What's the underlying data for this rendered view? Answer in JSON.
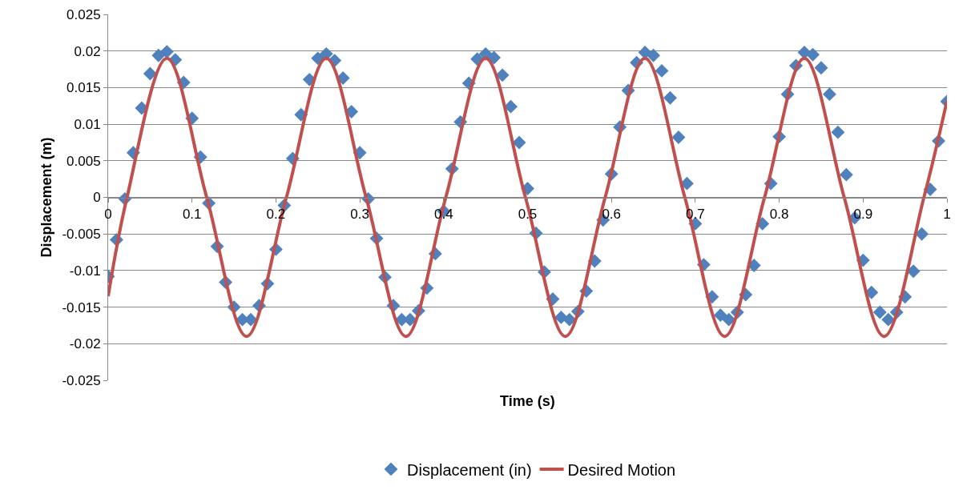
{
  "chart_data": {
    "type": "scatter",
    "xlabel": "Time (s)",
    "ylabel": "Displacement (m)",
    "xlim": [
      0,
      1
    ],
    "xticks": [
      0,
      0.1,
      0.2,
      0.3,
      0.4,
      0.5,
      0.6,
      0.7,
      0.8,
      0.9,
      1
    ],
    "ylim": [
      -0.025,
      0.025
    ],
    "yticks": [
      -0.025,
      -0.02,
      -0.015,
      -0.01,
      -0.005,
      0,
      0.005,
      0.01,
      0.015,
      0.02,
      0.025
    ],
    "grid": "y",
    "legend": "bottom",
    "series": [
      {
        "name": "Displacement (in)",
        "marker": "diamond",
        "color": "#4f81bd",
        "x": [
          0,
          0.01,
          0.02,
          0.03,
          0.04,
          0.05,
          0.06,
          0.07,
          0.08,
          0.09,
          0.1,
          0.11,
          0.12,
          0.13,
          0.14,
          0.15,
          0.16,
          0.17,
          0.18,
          0.19,
          0.2,
          0.21,
          0.22,
          0.23,
          0.24,
          0.25,
          0.26,
          0.27,
          0.28,
          0.29,
          0.3,
          0.31,
          0.32,
          0.33,
          0.34,
          0.35,
          0.36,
          0.37,
          0.38,
          0.39,
          0.4,
          0.41,
          0.42,
          0.43,
          0.44,
          0.45,
          0.46,
          0.47,
          0.48,
          0.49,
          0.5,
          0.51,
          0.52,
          0.53,
          0.54,
          0.55,
          0.56,
          0.57,
          0.58,
          0.59,
          0.6,
          0.61,
          0.62,
          0.63,
          0.64,
          0.65,
          0.66,
          0.67,
          0.68,
          0.69,
          0.7,
          0.71,
          0.72,
          0.73,
          0.74,
          0.75,
          0.76,
          0.77,
          0.78,
          0.79,
          0.8,
          0.81,
          0.82,
          0.83,
          0.84,
          0.85,
          0.86,
          0.87,
          0.88,
          0.89,
          0.9,
          0.91,
          0.92,
          0.93,
          0.94,
          0.95,
          0.96,
          0.97,
          0.98,
          0.99,
          1
        ],
        "values": [
          -0.0108,
          -0.0058,
          -0.0002,
          0.0061,
          0.0122,
          0.0169,
          0.0194,
          0.0199,
          0.0188,
          0.0157,
          0.0108,
          0.0055,
          -0.0008,
          -0.0067,
          -0.0116,
          -0.015,
          -0.0167,
          -0.0167,
          -0.0148,
          -0.0118,
          -0.0071,
          -0.0011,
          0.0053,
          0.0113,
          0.0161,
          0.019,
          0.0196,
          0.0187,
          0.0163,
          0.0117,
          0.0061,
          -0.0002,
          -0.0056,
          -0.0109,
          -0.0148,
          -0.0167,
          -0.0167,
          -0.0155,
          -0.0124,
          -0.0077,
          -0.0019,
          0.0039,
          0.0103,
          0.0156,
          0.0189,
          0.0196,
          0.0191,
          0.0167,
          0.0124,
          0.0075,
          0.0012,
          -0.0049,
          -0.0102,
          -0.0139,
          -0.0164,
          -0.0167,
          -0.0156,
          -0.0128,
          -0.0087,
          -0.0031,
          0.0032,
          0.0096,
          0.0146,
          0.0184,
          0.0198,
          0.0194,
          0.0173,
          0.0136,
          0.0082,
          0.0019,
          -0.0036,
          -0.0092,
          -0.0136,
          -0.0161,
          -0.0167,
          -0.0157,
          -0.0133,
          -0.0093,
          -0.0036,
          0.0019,
          0.0083,
          0.0141,
          0.018,
          0.0198,
          0.0195,
          0.0177,
          0.0141,
          0.0089,
          0.0031,
          -0.0028,
          -0.0086,
          -0.013,
          -0.0157,
          -0.0167,
          -0.0157,
          -0.0136,
          -0.0101,
          -0.005,
          0.0011,
          0.0077,
          0.0131
        ]
      },
      {
        "name": "Desired Motion",
        "type": "line",
        "marker": "none",
        "color": "#c0504d",
        "line_style": "solid",
        "x": [
          0,
          0.0225,
          0.07,
          0.1175,
          0.165,
          0.2125,
          0.26,
          0.3075,
          0.355,
          0.4025,
          0.45,
          0.4975,
          0.545,
          0.5925,
          0.64,
          0.6875,
          0.735,
          0.7825,
          0.83,
          0.8775,
          0.925,
          0.9725,
          1
        ],
        "values": [
          -0.0135,
          0,
          0.019,
          0,
          -0.019,
          0,
          0.019,
          0,
          -0.019,
          0,
          0.019,
          0,
          -0.019,
          0,
          0.019,
          0,
          -0.019,
          0,
          0.019,
          0,
          -0.019,
          0,
          0.0132
        ]
      }
    ]
  }
}
